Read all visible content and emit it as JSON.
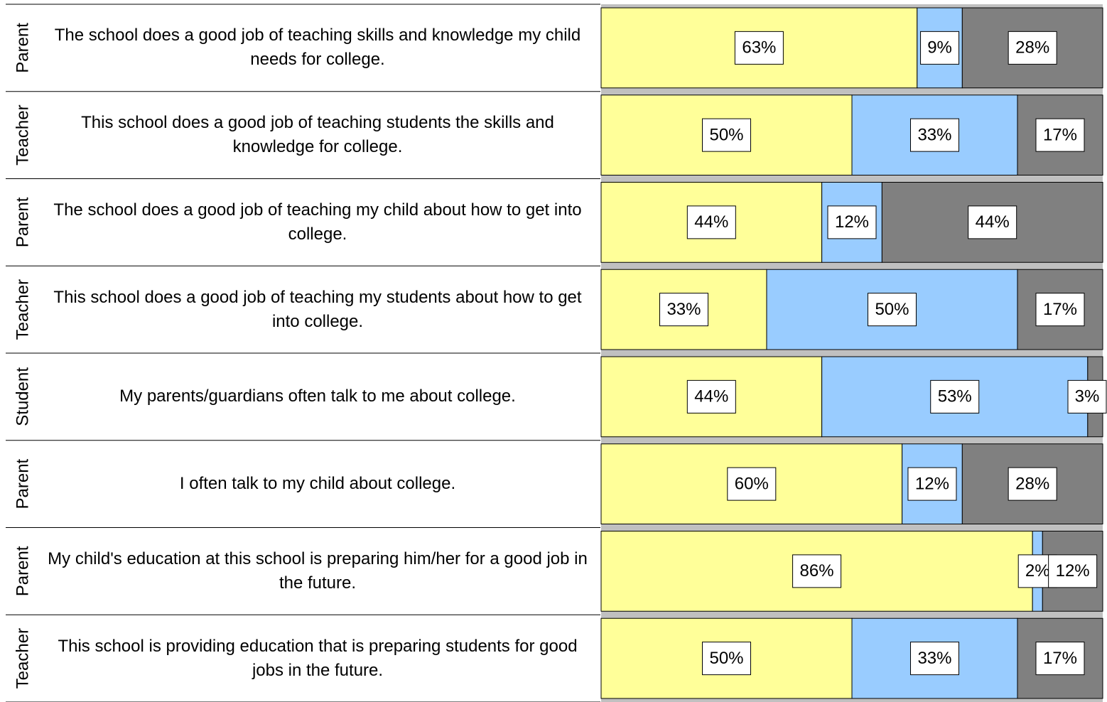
{
  "chart_data": {
    "type": "stacked_bar",
    "categories": [
      "The school does a good job of teaching skills and knowledge my child needs for college.",
      "This school does a good job of teaching students the skills and knowledge for college.",
      "The school does a good job of teaching my child about how to get into college.",
      "This school does a good job of teaching my students about how to get into college.",
      "My parents/guardians often talk to me about college.",
      "I often talk to my child about college.",
      "My child's education at this school is preparing him/her for a good job in the future.",
      "This school is providing education that is preparing students for good jobs in the future."
    ],
    "groups": [
      "Parent",
      "Teacher",
      "Parent",
      "Teacher",
      "Student",
      "Parent",
      "Parent",
      "Teacher"
    ],
    "xlim": [
      0,
      100
    ],
    "series": [
      {
        "color": "#ffff99",
        "values": [
          63,
          50,
          44,
          33,
          44,
          60,
          86,
          50
        ],
        "value_labels": [
          "63%",
          "50%",
          "44%",
          "33%",
          "44%",
          "60%",
          "86%",
          "50%"
        ]
      },
      {
        "color": "#99ccff",
        "values": [
          9,
          33,
          12,
          50,
          53,
          12,
          2,
          33
        ],
        "value_labels": [
          "9%",
          "33%",
          "12%",
          "50%",
          "53%",
          "12%",
          "2%",
          "33%"
        ]
      },
      {
        "color": "#808080",
        "values": [
          28,
          17,
          44,
          17,
          3,
          28,
          12,
          17
        ],
        "value_labels": [
          "28%",
          "17%",
          "44%",
          "17%",
          "3%",
          "28%",
          "12%",
          "17%"
        ]
      }
    ]
  }
}
